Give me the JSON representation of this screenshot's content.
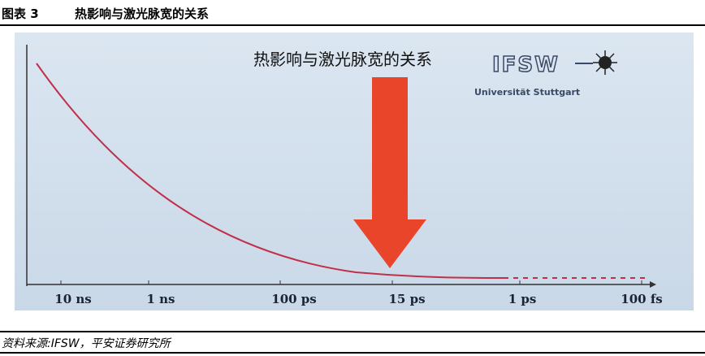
{
  "header": {
    "label": "图表 3",
    "title": "热影响与激光脉宽的关系"
  },
  "figure": {
    "title": "热影响与激光脉宽的关系",
    "logo": {
      "text": "IFSW",
      "subtitle": "Universität Stuttgart"
    },
    "x_ticks": [
      "10 ns",
      "1 ns",
      "100 ps",
      "15 ps",
      "1 ps",
      "100 fs"
    ],
    "colors": {
      "curve": "#c0304a",
      "arrow": "#e8452b",
      "background": "#d3e0ee"
    }
  },
  "source": "资料来源:IFSW，平安证券研究所"
}
